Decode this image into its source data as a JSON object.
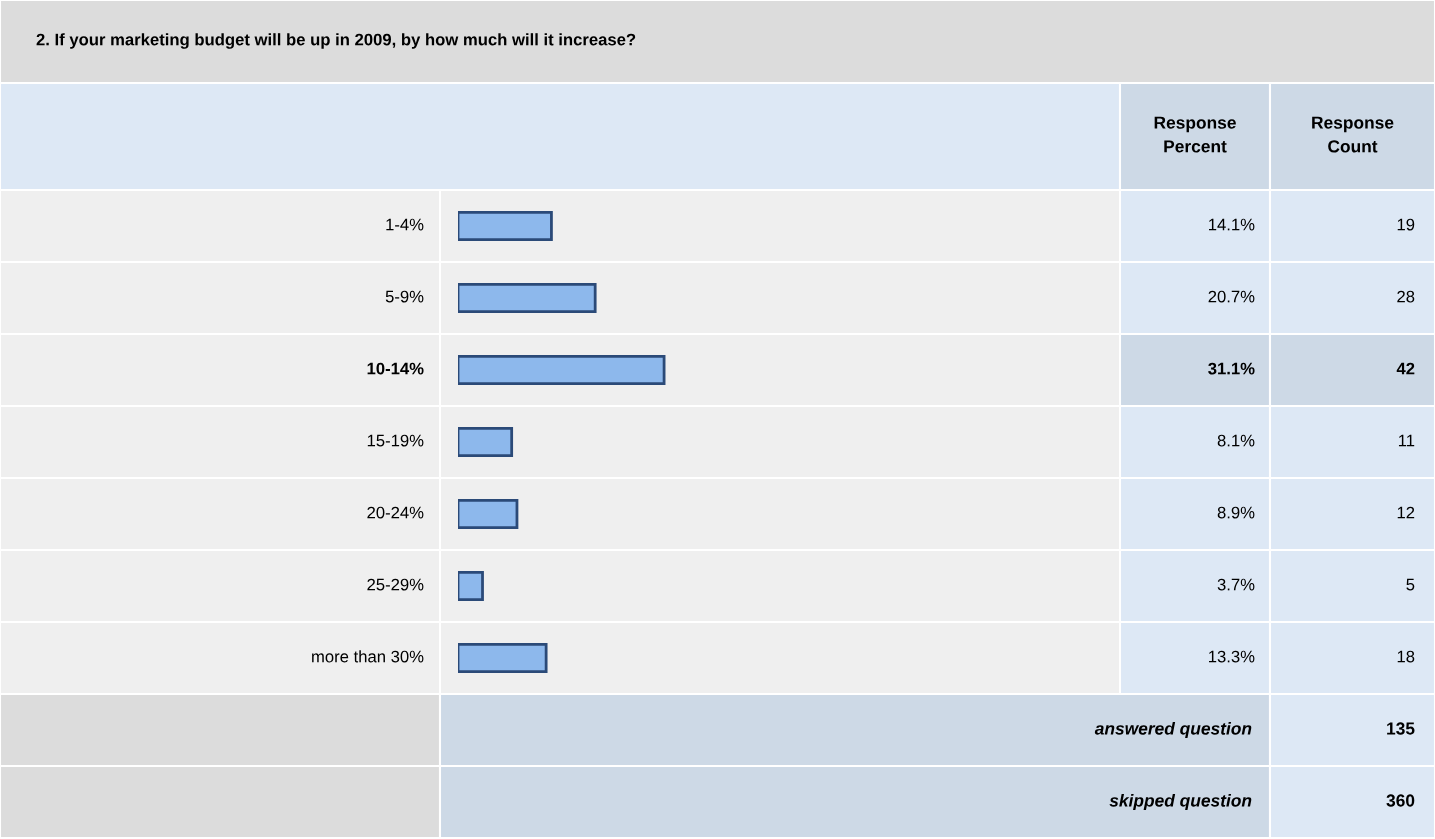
{
  "chart_data": {
    "type": "bar",
    "orientation": "horizontal",
    "title": "2. If your marketing budget will be up in 2009, by how much will it increase?",
    "categories": [
      "1-4%",
      "5-9%",
      "10-14%",
      "15-19%",
      "20-24%",
      "25-29%",
      "more than 30%"
    ],
    "values": [
      14.1,
      20.7,
      31.1,
      8.1,
      8.9,
      3.7,
      13.3
    ],
    "color": "#8db8ec",
    "value_labels": [
      "14.1%",
      "20.7%",
      "31.1%",
      "8.1%",
      "8.9%",
      "3.7%",
      "13.3%"
    ],
    "annotations": [
      "Response Percent",
      "Response Count",
      "19",
      "28",
      "42",
      "11",
      "12",
      "5",
      "18",
      "answered question",
      "135",
      "skipped question",
      "360"
    ]
  }
}
